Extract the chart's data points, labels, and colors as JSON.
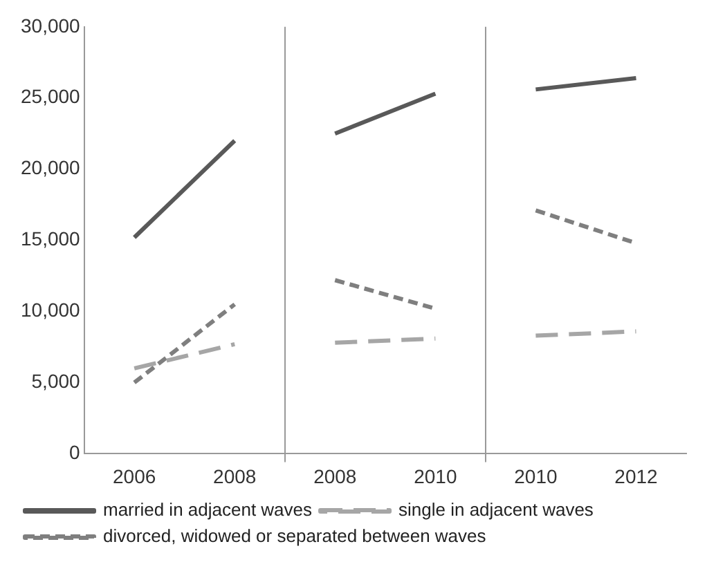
{
  "chart_data": {
    "type": "line",
    "categories": [
      "2006",
      "2008",
      "2008",
      "2010",
      "2010",
      "2012"
    ],
    "series": [
      {
        "name": "married in adjacent waves",
        "color": "#595959",
        "line_style": "solid",
        "values": [
          15200,
          22000,
          22500,
          25300,
          25600,
          26400
        ]
      },
      {
        "name": "single in adjacent waves",
        "color": "#a6a6a6",
        "line_style": "dashed",
        "values": [
          6000,
          7700,
          7800,
          8100,
          8300,
          8600
        ]
      },
      {
        "name": "divorced, widowed or separated between waves",
        "color": "#7f7f7f",
        "line_style": "dashed",
        "values": [
          5000,
          10500,
          12200,
          10200,
          17100,
          14800
        ]
      }
    ],
    "ylim": [
      0,
      30000
    ],
    "yticks": [
      0,
      {
        "value": 5000,
        "label": "5,000"
      },
      {
        "value": 10000,
        "label": "10,000"
      },
      {
        "value": 15000,
        "label": "15,000"
      },
      {
        "value": 20000,
        "label": "20,000"
      },
      {
        "value": 25000,
        "label": "25,000"
      },
      {
        "value": 30000,
        "label": "30,000"
      }
    ],
    "grid": "x",
    "legend": "bottom",
    "marker": "none"
  }
}
